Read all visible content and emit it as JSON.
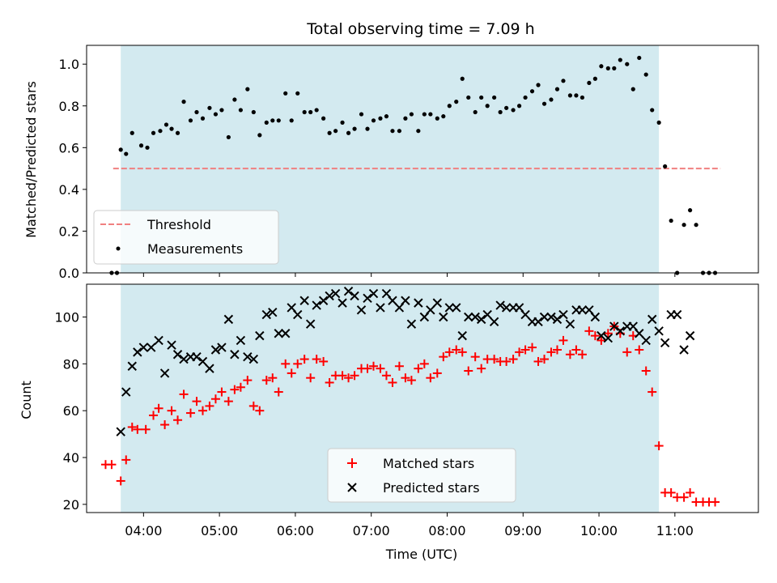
{
  "chart_data": [
    {
      "type": "scatter",
      "title": "Total observing time = 7.09 h",
      "xlabel": "",
      "ylabel": "Matched/Predicted stars",
      "xlim": [
        3.25,
        12.1
      ],
      "ylim": [
        0,
        1.09
      ],
      "yticks": [
        0.0,
        0.2,
        0.4,
        0.6,
        0.8,
        1.0
      ],
      "ytick_labels": [
        "0.0",
        "0.2",
        "0.4",
        "0.6",
        "0.8",
        "1.0"
      ],
      "shaded_span": [
        3.7,
        10.79
      ],
      "shade_color": "#d3eaf0",
      "legend": {
        "position": "lower-left",
        "entries": [
          "Threshold",
          "Measurements"
        ]
      },
      "threshold": {
        "name": "Threshold",
        "value": 0.5,
        "x_range": [
          3.6,
          11.6
        ],
        "color": "#f08080"
      },
      "measurements": {
        "name": "Measurements",
        "color": "#000000",
        "x": [
          3.58,
          3.65,
          3.7,
          3.77,
          3.85,
          3.97,
          4.05,
          4.13,
          4.22,
          4.3,
          4.37,
          4.45,
          4.53,
          4.62,
          4.7,
          4.78,
          4.87,
          4.95,
          5.03,
          5.12,
          5.2,
          5.28,
          5.37,
          5.45,
          5.53,
          5.62,
          5.7,
          5.78,
          5.87,
          5.95,
          6.03,
          6.12,
          6.2,
          6.28,
          6.37,
          6.45,
          6.53,
          6.62,
          6.7,
          6.78,
          6.87,
          6.95,
          7.03,
          7.12,
          7.2,
          7.28,
          7.37,
          7.45,
          7.53,
          7.62,
          7.7,
          7.78,
          7.87,
          7.95,
          8.03,
          8.12,
          8.2,
          8.28,
          8.37,
          8.45,
          8.53,
          8.62,
          8.7,
          8.78,
          8.87,
          8.95,
          9.03,
          9.12,
          9.2,
          9.28,
          9.37,
          9.45,
          9.53,
          9.62,
          9.7,
          9.78,
          9.87,
          9.95,
          10.03,
          10.12,
          10.2,
          10.28,
          10.37,
          10.45,
          10.53,
          10.62,
          10.7,
          10.79,
          10.87,
          10.95,
          11.03,
          11.12,
          11.2,
          11.28,
          11.37,
          11.45,
          11.53
        ],
        "y": [
          0.0,
          0.0,
          0.59,
          0.57,
          0.67,
          0.61,
          0.6,
          0.67,
          0.68,
          0.71,
          0.69,
          0.67,
          0.82,
          0.73,
          0.77,
          0.74,
          0.79,
          0.76,
          0.78,
          0.65,
          0.83,
          0.78,
          0.88,
          0.77,
          0.66,
          0.72,
          0.73,
          0.73,
          0.86,
          0.73,
          0.86,
          0.77,
          0.77,
          0.78,
          0.74,
          0.67,
          0.68,
          0.72,
          0.67,
          0.69,
          0.76,
          0.69,
          0.73,
          0.74,
          0.75,
          0.68,
          0.68,
          0.74,
          0.76,
          0.68,
          0.76,
          0.76,
          0.74,
          0.75,
          0.8,
          0.82,
          0.93,
          0.84,
          0.77,
          0.84,
          0.8,
          0.84,
          0.77,
          0.79,
          0.78,
          0.8,
          0.84,
          0.87,
          0.9,
          0.81,
          0.83,
          0.88,
          0.92,
          0.85,
          0.85,
          0.84,
          0.91,
          0.93,
          0.99,
          0.98,
          0.98,
          1.02,
          1.0,
          0.88,
          1.03,
          0.95,
          0.78,
          0.72,
          0.51,
          0.25,
          0.0,
          0.23,
          0.3,
          0.23,
          0.0,
          0.0,
          0.0
        ]
      }
    },
    {
      "type": "scatter",
      "title": "",
      "xlabel": "Time (UTC)",
      "ylabel": "Count",
      "xlim": [
        3.25,
        12.1
      ],
      "ylim": [
        16.5,
        114
      ],
      "yticks": [
        20,
        40,
        60,
        80,
        100
      ],
      "ytick_labels": [
        "20",
        "40",
        "60",
        "80",
        "100"
      ],
      "xticks": [
        4,
        5,
        6,
        7,
        8,
        9,
        10,
        11
      ],
      "xtick_labels": [
        "04:00",
        "05:00",
        "06:00",
        "07:00",
        "08:00",
        "09:00",
        "10:00",
        "11:00"
      ],
      "shaded_span": [
        3.7,
        10.79
      ],
      "shade_color": "#d3eaf0",
      "legend": {
        "position": "lower-center",
        "entries": [
          "Matched stars",
          "Predicted stars"
        ]
      },
      "series": [
        {
          "name": "Matched stars",
          "marker": "plus",
          "color": "#ff0000",
          "x": [
            3.5,
            3.58,
            3.7,
            3.77,
            3.85,
            3.92,
            4.03,
            4.13,
            4.2,
            4.28,
            4.37,
            4.45,
            4.53,
            4.62,
            4.7,
            4.78,
            4.87,
            4.95,
            5.03,
            5.12,
            5.2,
            5.28,
            5.37,
            5.45,
            5.53,
            5.62,
            5.7,
            5.78,
            5.87,
            5.95,
            6.03,
            6.12,
            6.2,
            6.28,
            6.37,
            6.45,
            6.53,
            6.62,
            6.7,
            6.78,
            6.87,
            6.95,
            7.03,
            7.12,
            7.2,
            7.28,
            7.37,
            7.45,
            7.53,
            7.62,
            7.7,
            7.78,
            7.87,
            7.95,
            8.03,
            8.12,
            8.2,
            8.28,
            8.37,
            8.45,
            8.53,
            8.62,
            8.7,
            8.78,
            8.87,
            8.95,
            9.03,
            9.12,
            9.2,
            9.28,
            9.37,
            9.45,
            9.53,
            9.62,
            9.7,
            9.78,
            9.87,
            9.95,
            10.03,
            10.12,
            10.2,
            10.28,
            10.37,
            10.45,
            10.53,
            10.62,
            10.7,
            10.79,
            10.87,
            10.95,
            11.03,
            11.12,
            11.2,
            11.28,
            11.37,
            11.45,
            11.53
          ],
          "y": [
            37,
            37,
            30,
            39,
            53,
            52,
            52,
            58,
            61,
            54,
            60,
            56,
            67,
            59,
            64,
            60,
            62,
            65,
            68,
            64,
            69,
            70,
            73,
            62,
            60,
            73,
            74,
            68,
            80,
            76,
            80,
            82,
            74,
            82,
            81,
            72,
            75,
            75,
            74,
            75,
            78,
            78,
            79,
            78,
            75,
            72,
            79,
            74,
            73,
            78,
            80,
            74,
            76,
            83,
            85,
            86,
            85,
            77,
            83,
            78,
            82,
            82,
            81,
            81,
            82,
            85,
            86,
            87,
            81,
            82,
            85,
            86,
            90,
            84,
            86,
            84,
            94,
            92,
            90,
            93,
            96,
            93,
            85,
            92,
            86,
            77,
            68,
            45,
            25,
            25,
            23,
            23,
            25,
            21,
            21,
            21,
            21
          ]
        },
        {
          "name": "Predicted stars",
          "marker": "x",
          "color": "#000000",
          "x": [
            3.7,
            3.77,
            3.85,
            3.92,
            4.0,
            4.1,
            4.2,
            4.28,
            4.37,
            4.45,
            4.53,
            4.62,
            4.7,
            4.78,
            4.87,
            4.95,
            5.03,
            5.12,
            5.2,
            5.28,
            5.37,
            5.45,
            5.53,
            5.62,
            5.7,
            5.78,
            5.87,
            5.95,
            6.03,
            6.12,
            6.2,
            6.28,
            6.37,
            6.45,
            6.53,
            6.62,
            6.7,
            6.78,
            6.87,
            6.95,
            7.03,
            7.12,
            7.2,
            7.28,
            7.37,
            7.45,
            7.53,
            7.62,
            7.7,
            7.78,
            7.87,
            7.95,
            8.03,
            8.12,
            8.2,
            8.28,
            8.37,
            8.45,
            8.53,
            8.62,
            8.7,
            8.78,
            8.87,
            8.95,
            9.03,
            9.12,
            9.2,
            9.28,
            9.37,
            9.45,
            9.53,
            9.62,
            9.7,
            9.78,
            9.87,
            9.95,
            10.03,
            10.12,
            10.2,
            10.28,
            10.37,
            10.45,
            10.53,
            10.62,
            10.7,
            10.79,
            10.87,
            10.95,
            11.03,
            11.12,
            11.2
          ],
          "y": [
            51,
            68,
            79,
            85,
            87,
            87,
            90,
            76,
            88,
            84,
            82,
            83,
            83,
            81,
            78,
            86,
            87,
            99,
            84,
            90,
            83,
            82,
            92,
            101,
            102,
            93,
            93,
            104,
            101,
            107,
            97,
            105,
            107,
            109,
            110,
            106,
            111,
            109,
            103,
            108,
            110,
            104,
            110,
            107,
            104,
            107,
            97,
            106,
            100,
            103,
            106,
            100,
            104,
            104,
            92,
            100,
            100,
            99,
            101,
            98,
            105,
            104,
            104,
            104,
            101,
            98,
            98,
            100,
            100,
            99,
            101,
            97,
            103,
            103,
            103,
            100,
            92,
            91,
            96,
            94,
            96,
            96,
            93,
            90,
            99,
            94,
            89,
            101,
            101,
            86,
            92
          ]
        }
      ]
    }
  ]
}
